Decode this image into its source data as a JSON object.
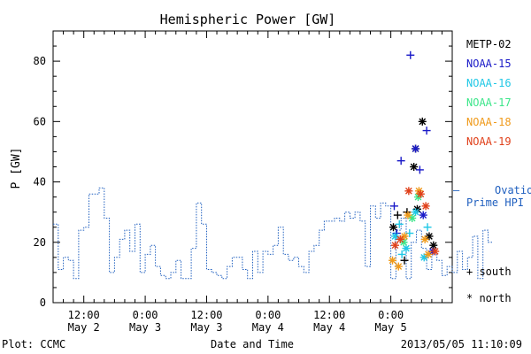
{
  "chart_data": {
    "type": "scatter",
    "title": "Hemispheric Power [GW]",
    "ylabel": "P [GW]",
    "xlabel": "Date and Time",
    "ylim": [
      0,
      90
    ],
    "yticks": [
      0,
      20,
      40,
      60,
      80
    ],
    "xlim": [
      "2013-05-02 06:00",
      "2013-05-05 12:00"
    ],
    "xticks": [
      {
        "time": "2013-05-02 12:00",
        "line1": "12:00",
        "line2": "May 2"
      },
      {
        "time": "2013-05-03 00:00",
        "line1": "0:00",
        "line2": "May 3"
      },
      {
        "time": "2013-05-03 12:00",
        "line1": "12:00",
        "line2": "May 3"
      },
      {
        "time": "2013-05-04 00:00",
        "line1": "0:00",
        "line2": "May 4"
      },
      {
        "time": "2013-05-04 12:00",
        "line1": "12:00",
        "line2": "May 4"
      },
      {
        "time": "2013-05-05 00:00",
        "line1": "0:00",
        "line2": "May 5"
      }
    ],
    "ovation": {
      "name_line1": "Ovation",
      "name_line2": "Prime HPI",
      "marker": "—",
      "color": "#1f5fbf",
      "x_hours": [
        0,
        1,
        2,
        3,
        4,
        5,
        6,
        7,
        8,
        9,
        10,
        11,
        12,
        13,
        14,
        15,
        16,
        17,
        18,
        19,
        20,
        21,
        22,
        23,
        24,
        25,
        26,
        27,
        28,
        29,
        30,
        31,
        32,
        33,
        34,
        35,
        36,
        37,
        38,
        39,
        40,
        41,
        42,
        43,
        44,
        45,
        46,
        47,
        48,
        49,
        50,
        51,
        52,
        53,
        54,
        55,
        56,
        57,
        58,
        59,
        60,
        61,
        62,
        63,
        64,
        65,
        66,
        67,
        68,
        69,
        70,
        71,
        72,
        73,
        74,
        75,
        76,
        77,
        78,
        79,
        80,
        81,
        82,
        83,
        84,
        85
      ],
      "values": [
        26,
        11,
        15,
        14,
        8,
        24,
        25,
        36,
        36,
        38,
        28,
        10,
        15,
        21,
        24,
        17,
        26,
        10,
        16,
        19,
        12,
        9,
        8,
        10,
        14,
        8,
        8,
        18,
        33,
        26,
        11,
        10,
        9,
        8,
        12,
        15,
        15,
        11,
        8,
        17,
        10,
        17,
        16,
        19,
        25,
        16,
        14,
        15,
        12,
        10,
        17,
        19,
        24,
        27,
        27,
        28,
        27,
        30,
        28,
        30,
        27,
        12,
        32,
        28,
        33,
        32,
        8,
        24,
        28,
        8,
        20,
        24,
        18,
        11,
        16,
        14,
        9,
        12,
        10,
        17,
        11,
        15,
        22,
        8,
        24,
        20
      ]
    },
    "satellites": [
      {
        "name": "METP-02",
        "color": "#000000",
        "points": [
          {
            "x": "2013-05-05 00:30",
            "y": 25,
            "m": "*"
          },
          {
            "x": "2013-05-05 01:20",
            "y": 29,
            "m": "+"
          },
          {
            "x": "2013-05-05 02:40",
            "y": 14,
            "m": "+"
          },
          {
            "x": "2013-05-05 03:10",
            "y": 30,
            "m": "+"
          },
          {
            "x": "2013-05-05 04:30",
            "y": 45,
            "m": "*"
          },
          {
            "x": "2013-05-05 04:50",
            "y": 51,
            "m": "*"
          },
          {
            "x": "2013-05-05 05:10",
            "y": 31,
            "m": "*"
          },
          {
            "x": "2013-05-05 06:10",
            "y": 60,
            "m": "*"
          },
          {
            "x": "2013-05-05 07:30",
            "y": 22,
            "m": "*"
          },
          {
            "x": "2013-05-05 08:20",
            "y": 19,
            "m": "*"
          }
        ]
      },
      {
        "name": "NOAA-15",
        "color": "#1a1ac8",
        "points": [
          {
            "x": "2013-05-05 00:40",
            "y": 32,
            "m": "+"
          },
          {
            "x": "2013-05-05 01:10",
            "y": 23,
            "m": "+"
          },
          {
            "x": "2013-05-05 02:00",
            "y": 47,
            "m": "+"
          },
          {
            "x": "2013-05-05 03:50",
            "y": 82,
            "m": "+"
          },
          {
            "x": "2013-05-05 04:50",
            "y": 51,
            "m": "*"
          },
          {
            "x": "2013-05-05 05:40",
            "y": 44,
            "m": "+"
          },
          {
            "x": "2013-05-05 06:20",
            "y": 29,
            "m": "*"
          },
          {
            "x": "2013-05-05 07:00",
            "y": 57,
            "m": "+"
          },
          {
            "x": "2013-05-05 08:10",
            "y": 17,
            "m": "*"
          }
        ]
      },
      {
        "name": "NOAA-16",
        "color": "#20c8e6",
        "points": [
          {
            "x": "2013-05-05 00:50",
            "y": 22,
            "m": "*"
          },
          {
            "x": "2013-05-05 01:40",
            "y": 26,
            "m": "+"
          },
          {
            "x": "2013-05-05 02:10",
            "y": 16,
            "m": "+"
          },
          {
            "x": "2013-05-05 03:00",
            "y": 18,
            "m": "*"
          },
          {
            "x": "2013-05-05 03:40",
            "y": 23,
            "m": "+"
          },
          {
            "x": "2013-05-05 04:50",
            "y": 30,
            "m": "*"
          },
          {
            "x": "2013-05-05 06:30",
            "y": 15,
            "m": "*"
          },
          {
            "x": "2013-05-05 07:10",
            "y": 25,
            "m": "+"
          }
        ]
      },
      {
        "name": "NOAA-17",
        "color": "#3ce68a",
        "points": [
          {
            "x": "2013-05-05 02:30",
            "y": 20,
            "m": "*"
          },
          {
            "x": "2013-05-05 04:10",
            "y": 28,
            "m": "*"
          },
          {
            "x": "2013-05-05 05:20",
            "y": 35,
            "m": "*"
          }
        ]
      },
      {
        "name": "NOAA-18",
        "color": "#f09a1a",
        "points": [
          {
            "x": "2013-05-05 00:20",
            "y": 14,
            "m": "*"
          },
          {
            "x": "2013-05-05 01:30",
            "y": 12,
            "m": "*"
          },
          {
            "x": "2013-05-05 02:40",
            "y": 22,
            "m": "*"
          },
          {
            "x": "2013-05-05 03:20",
            "y": 29,
            "m": "*"
          },
          {
            "x": "2013-05-05 05:30",
            "y": 37,
            "m": "*"
          },
          {
            "x": "2013-05-05 06:40",
            "y": 21,
            "m": "*"
          },
          {
            "x": "2013-05-05 07:20",
            "y": 16,
            "m": "*"
          }
        ]
      },
      {
        "name": "NOAA-19",
        "color": "#e0401a",
        "points": [
          {
            "x": "2013-05-05 00:50",
            "y": 19,
            "m": "*"
          },
          {
            "x": "2013-05-05 01:50",
            "y": 21,
            "m": "*"
          },
          {
            "x": "2013-05-05 03:30",
            "y": 37,
            "m": "*"
          },
          {
            "x": "2013-05-05 05:50",
            "y": 36,
            "m": "*"
          },
          {
            "x": "2013-05-05 06:50",
            "y": 32,
            "m": "*"
          },
          {
            "x": "2013-05-05 08:40",
            "y": 17,
            "m": "*"
          }
        ]
      }
    ],
    "marker_legend": [
      {
        "symbol": "+",
        "label": "south"
      },
      {
        "symbol": "*",
        "label": "north"
      }
    ],
    "footer_left": "Plot: CCMC",
    "footer_right": "2013/05/05 11:10:09",
    "grid": false,
    "legend": "right"
  }
}
